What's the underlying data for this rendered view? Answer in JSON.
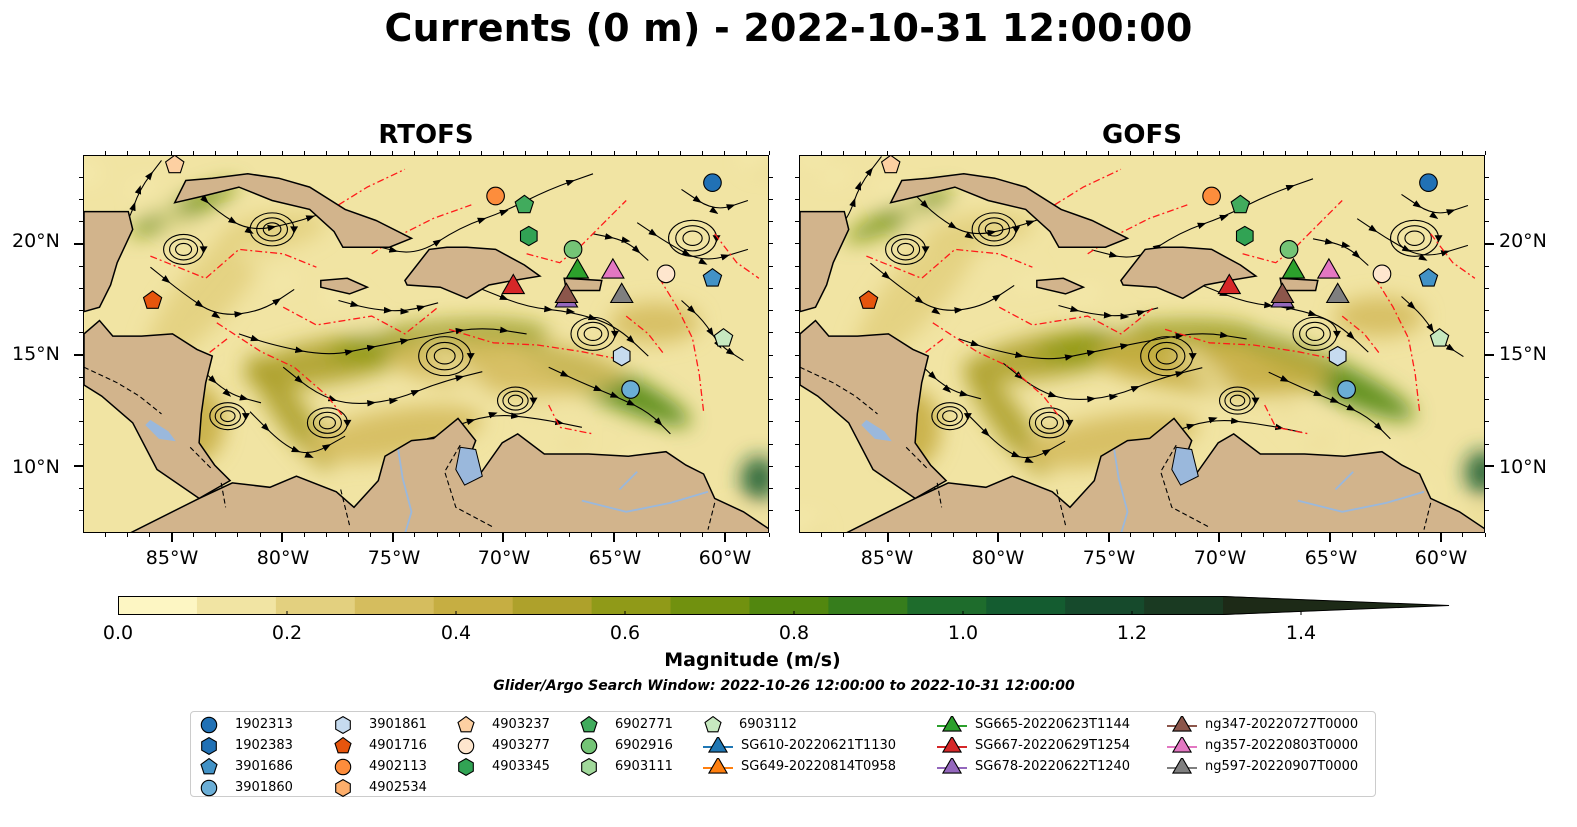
{
  "title": "Currents (0 m) - 2022-10-31 12:00:00",
  "panels": [
    {
      "title": "RTOFS"
    },
    {
      "title": "GOFS"
    }
  ],
  "axes": {
    "x_ticks": [
      "85°W",
      "80°W",
      "75°W",
      "70°W",
      "65°W",
      "60°W"
    ],
    "y_ticks": [
      "20°N",
      "15°N",
      "10°N"
    ],
    "lon_range": [
      -89,
      -58
    ],
    "lat_range": [
      7,
      24
    ]
  },
  "colorbar": {
    "label": "Magnitude (m/s)",
    "ticks": [
      "0.0",
      "0.2",
      "0.4",
      "0.6",
      "0.8",
      "1.0",
      "1.2",
      "1.4"
    ],
    "range": [
      0,
      1.5
    ],
    "extend": "max",
    "colors": [
      "#fdf6c3",
      "#f1e4a3",
      "#e3d07f",
      "#d5bd5e",
      "#c6ae42",
      "#aea12b",
      "#909a18",
      "#71910f",
      "#52870f",
      "#367d1c",
      "#1e6c2c",
      "#145c30",
      "#164a2c",
      "#1a3a22",
      "#1d2a17"
    ]
  },
  "search_window": "Glider/Argo Search Window: 2022-10-26 12:00:00 to 2022-10-31 12:00:00",
  "land_color": "#d2b48c",
  "legend": [
    {
      "label": "1902313",
      "marker": "circle",
      "color": "#2171b5"
    },
    {
      "label": "1902383",
      "marker": "hexagon",
      "color": "#2171b5"
    },
    {
      "label": "3901686",
      "marker": "pentagon",
      "color": "#4292c6"
    },
    {
      "label": "3901860",
      "marker": "circle",
      "color": "#6baed6"
    },
    {
      "label": "3901861",
      "marker": "hexagon",
      "color": "#c6dbef"
    },
    {
      "label": "4901716",
      "marker": "pentagon",
      "color": "#e6550d"
    },
    {
      "label": "4902113",
      "marker": "circle",
      "color": "#fd8d3c"
    },
    {
      "label": "4902534",
      "marker": "hexagon",
      "color": "#fdae6b"
    },
    {
      "label": "4903237",
      "marker": "pentagon",
      "color": "#fdd0a2"
    },
    {
      "label": "4903277",
      "marker": "circle",
      "color": "#fee6ce"
    },
    {
      "label": "4903345",
      "marker": "hexagon",
      "color": "#31a354"
    },
    {
      "label": "6902771",
      "marker": "pentagon",
      "color": "#41ab5d"
    },
    {
      "label": "6902916",
      "marker": "circle",
      "color": "#74c476"
    },
    {
      "label": "6903111",
      "marker": "hexagon",
      "color": "#a1d99b"
    },
    {
      "label": "6903112",
      "marker": "pentagon",
      "color": "#c7e9c0"
    },
    {
      "label": "SG610-20220621T1130",
      "marker": "triangle",
      "color": "#1f77b4"
    },
    {
      "label": "SG649-20220814T0958",
      "marker": "triangle",
      "color": "#ff7f0e"
    },
    {
      "label": "SG665-20220623T1144",
      "marker": "triangle",
      "color": "#2ca02c"
    },
    {
      "label": "SG667-20220629T1254",
      "marker": "triangle",
      "color": "#d62728"
    },
    {
      "label": "SG678-20220622T1240",
      "marker": "triangle",
      "color": "#9467bd"
    },
    {
      "label": "ng347-20220727T0000",
      "marker": "triangle",
      "color": "#8c564b"
    },
    {
      "label": "ng357-20220803T0000",
      "marker": "triangle",
      "color": "#e377c2"
    },
    {
      "label": "ng597-20220907T0000",
      "marker": "triangle",
      "color": "#7f7f7f"
    }
  ],
  "platforms": [
    {
      "id": "4903237",
      "lon": -84.9,
      "lat": 23.6,
      "marker": "pentagon",
      "color": "#fdd0a2"
    },
    {
      "id": "4901716",
      "lon": -85.9,
      "lat": 17.5,
      "marker": "pentagon",
      "color": "#e6550d"
    },
    {
      "id": "1902313",
      "lon": -60.6,
      "lat": 22.8,
      "marker": "circle",
      "color": "#2171b5"
    },
    {
      "id": "4902113",
      "lon": -70.4,
      "lat": 22.2,
      "marker": "circle",
      "color": "#fd8d3c"
    },
    {
      "id": "6902771",
      "lon": -69.1,
      "lat": 21.8,
      "marker": "pentagon",
      "color": "#41ab5d"
    },
    {
      "id": "4903345",
      "lon": -68.9,
      "lat": 20.4,
      "marker": "hexagon",
      "color": "#31a354"
    },
    {
      "id": "6902916",
      "lon": -66.9,
      "lat": 19.8,
      "marker": "circle",
      "color": "#74c476"
    },
    {
      "id": "SG665-20220623T1144",
      "lon": -66.7,
      "lat": 18.9,
      "marker": "triangle",
      "color": "#2ca02c"
    },
    {
      "id": "SG667-20220629T1254",
      "lon": -69.6,
      "lat": 18.2,
      "marker": "triangle",
      "color": "#d62728"
    },
    {
      "id": "SG678-20220622T1240",
      "lon": -67.2,
      "lat": 17.6,
      "marker": "triangle",
      "color": "#9467bd"
    },
    {
      "id": "ng347-20220727T0000",
      "lon": -67.2,
      "lat": 17.8,
      "marker": "triangle",
      "color": "#8c564b"
    },
    {
      "id": "ng357-20220803T0000",
      "lon": -65.1,
      "lat": 18.9,
      "marker": "triangle",
      "color": "#e377c2"
    },
    {
      "id": "ng597-20220907T0000",
      "lon": -64.7,
      "lat": 17.8,
      "marker": "triangle",
      "color": "#7f7f7f"
    },
    {
      "id": "4903277",
      "lon": -62.7,
      "lat": 18.7,
      "marker": "circle",
      "color": "#fee6ce"
    },
    {
      "id": "3901686",
      "lon": -60.6,
      "lat": 18.5,
      "marker": "pentagon",
      "color": "#4292c6"
    },
    {
      "id": "6903112",
      "lon": -60.1,
      "lat": 15.8,
      "marker": "pentagon",
      "color": "#c7e9c0"
    },
    {
      "id": "3901861",
      "lon": -64.7,
      "lat": 15.0,
      "marker": "hexagon",
      "color": "#c6dbef"
    },
    {
      "id": "3901860",
      "lon": -64.3,
      "lat": 13.5,
      "marker": "circle",
      "color": "#6baed6"
    }
  ]
}
